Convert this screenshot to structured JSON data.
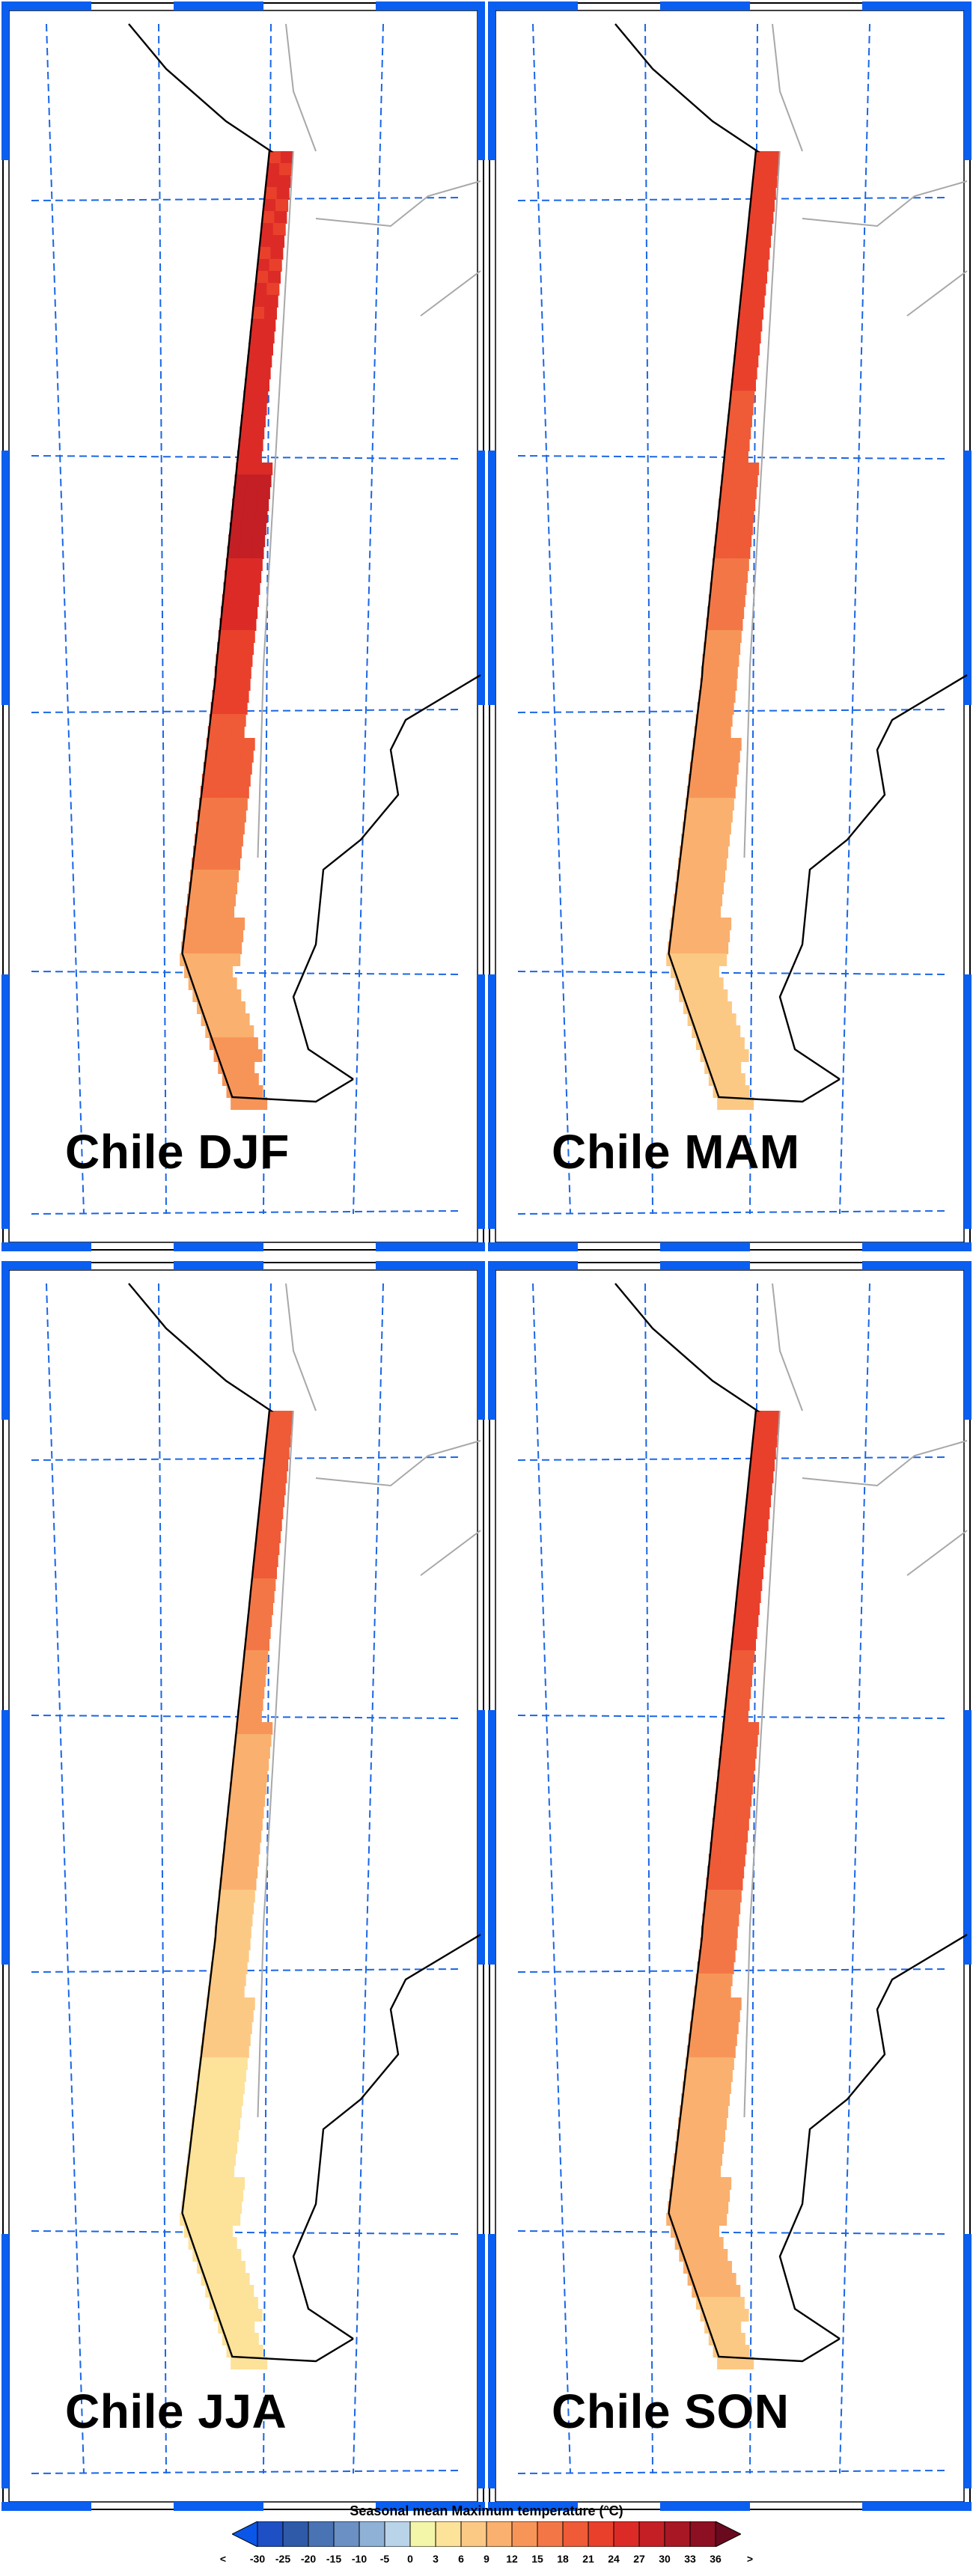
{
  "panels": [
    {
      "label": "Chile DJF",
      "season": "DJF",
      "tint": [
        [
          22,
          27
        ],
        [
          22,
          27
        ],
        [
          24,
          27
        ],
        [
          24,
          27
        ],
        [
          27,
          30
        ],
        [
          24,
          27
        ],
        [
          21,
          24
        ],
        [
          18,
          21
        ],
        [
          15,
          18
        ],
        [
          12,
          15
        ],
        [
          9,
          12
        ],
        [
          12,
          15
        ]
      ]
    },
    {
      "label": "Chile MAM",
      "season": "MAM",
      "tint": [
        [
          21,
          24
        ],
        [
          21,
          24
        ],
        [
          21,
          24
        ],
        [
          18,
          21
        ],
        [
          18,
          21
        ],
        [
          15,
          18
        ],
        [
          12,
          15
        ],
        [
          12,
          15
        ],
        [
          9,
          12
        ],
        [
          9,
          12
        ],
        [
          6,
          9
        ],
        [
          6,
          9
        ]
      ]
    },
    {
      "label": "Chile JJA",
      "season": "JJA",
      "tint": [
        [
          18,
          21
        ],
        [
          18,
          21
        ],
        [
          15,
          18
        ],
        [
          12,
          15
        ],
        [
          9,
          12
        ],
        [
          9,
          12
        ],
        [
          6,
          9
        ],
        [
          6,
          9
        ],
        [
          3,
          6
        ],
        [
          3,
          6
        ],
        [
          3,
          6
        ],
        [
          3,
          6
        ]
      ]
    },
    {
      "label": "Chile SON",
      "season": "SON",
      "tint": [
        [
          21,
          24
        ],
        [
          21,
          24
        ],
        [
          21,
          24
        ],
        [
          18,
          21
        ],
        [
          18,
          21
        ],
        [
          18,
          21
        ],
        [
          15,
          18
        ],
        [
          12,
          15
        ],
        [
          9,
          12
        ],
        [
          9,
          12
        ],
        [
          9,
          12
        ],
        [
          6,
          9
        ]
      ]
    }
  ],
  "legend": {
    "title": "Seasonal mean Maximum temperature (°C)",
    "left_arrow": "<",
    "right_arrow": ">",
    "ticks": [
      "-30",
      "-25",
      "-20",
      "-15",
      "-10",
      "-5",
      "0",
      "3",
      "6",
      "9",
      "12",
      "15",
      "18",
      "21",
      "24",
      "27",
      "30",
      "33",
      "36"
    ],
    "colors": [
      "#0a56e8",
      "#1f4fc4",
      "#2e5aa8",
      "#4a73b4",
      "#6a90c4",
      "#8fb1d6",
      "#b9d3e8",
      "#f3f6a8",
      "#fde29a",
      "#fcc985",
      "#fab06e",
      "#f79559",
      "#f37746",
      "#ef5a37",
      "#e9402c",
      "#dc2b26",
      "#c41f24",
      "#a81724",
      "#8c1022",
      "#6a0a1e"
    ]
  },
  "map_style": {
    "frame_color": "#0a5ef0",
    "grid_color": "#1a66e6",
    "coast_color": "#000000",
    "border_color": "#a8a8a8"
  }
}
